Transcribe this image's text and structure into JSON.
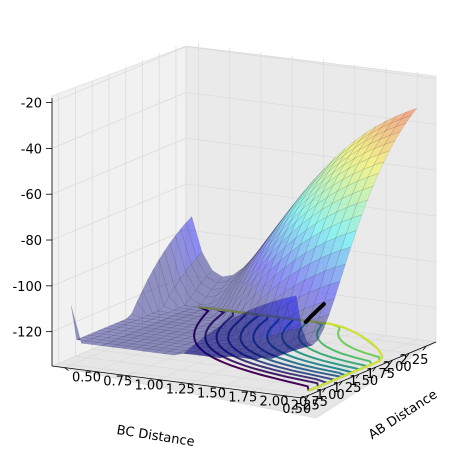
{
  "chart_data": {
    "type": "surface3d",
    "title": "",
    "xlabel": "BC Distance",
    "ylabel": "AB Distance",
    "zlabel": "",
    "x_ticks": [
      "0.50",
      "0.75",
      "1.00",
      "1.25",
      "1.50",
      "1.75",
      "2.00",
      "2.25"
    ],
    "y_ticks": [
      "0.50",
      "0.75",
      "1.00",
      "1.25",
      "1.50",
      "1.75",
      "2.00",
      "2.25"
    ],
    "z_ticks": [
      "-20",
      "-40",
      "-60",
      "-80",
      "-100",
      "-120"
    ],
    "xlim": [
      0.4,
      2.4
    ],
    "ylim": [
      0.4,
      2.4
    ],
    "zlim": [
      -135,
      -18
    ],
    "surface_colormap": "jet",
    "surface_alpha": 0.4,
    "contour_colormap": "viridis",
    "contour_z": -133,
    "trajectory": {
      "color": "#000000",
      "points": [
        [
          0.55,
          2.35,
          -104
        ],
        [
          0.63,
          2.35,
          -102.5
        ],
        [
          0.72,
          2.35,
          -101
        ],
        [
          0.82,
          2.35,
          -99.5
        ]
      ]
    },
    "colors": {
      "pane": "#f2f2f2",
      "grid": "#dcdcdc",
      "trajectory": "#000000"
    }
  }
}
